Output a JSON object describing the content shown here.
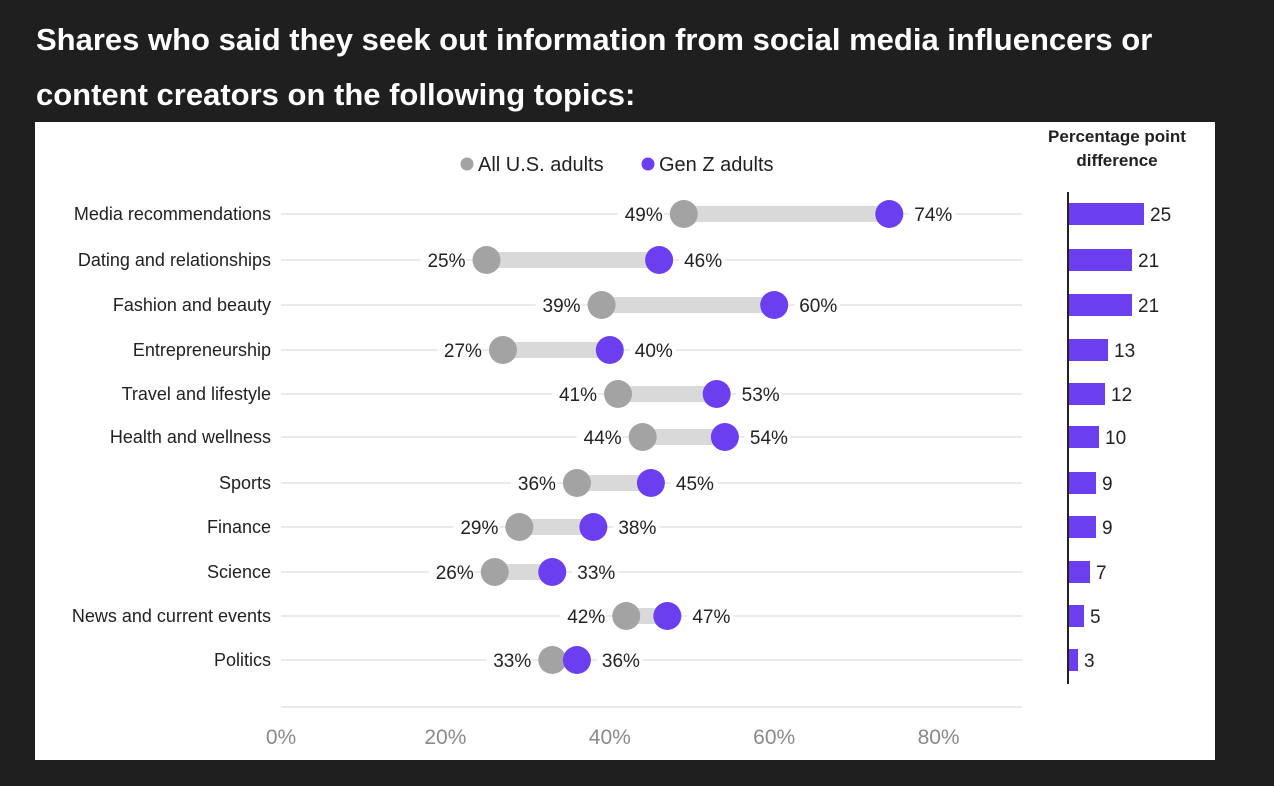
{
  "title": "Shares who said they seek out information from social media influencers or content creators on the following topics:",
  "colors": {
    "background": "#1f1f1f",
    "panel": "#ffffff",
    "all_adults": "#a3a3a3",
    "gen_z": "#6b3ff0",
    "connector": "#d9d9d9",
    "gridline": "#d6d6d6",
    "text": "#222222"
  },
  "chart_data": [
    {
      "type": "dot-plot",
      "xlim": [
        0,
        90
      ],
      "xticks": [
        0,
        20,
        40,
        60,
        80
      ],
      "xtick_labels": [
        "0%",
        "20%",
        "40%",
        "60%",
        "80%"
      ],
      "legend": {
        "position": "top",
        "entries": [
          "All U.S. adults",
          "Gen Z adults"
        ]
      },
      "categories": [
        "Media recommendations",
        "Dating and relationships",
        "Fashion and beauty",
        "Entrepreneurship",
        "Travel and lifestyle",
        "Health and wellness",
        "Sports",
        "Finance",
        "Science",
        "News and current events",
        "Politics"
      ],
      "series": [
        {
          "name": "All U.S. adults",
          "values": [
            49,
            25,
            39,
            27,
            41,
            44,
            36,
            29,
            26,
            42,
            33
          ]
        },
        {
          "name": "Gen Z adults",
          "values": [
            74,
            46,
            60,
            40,
            53,
            54,
            45,
            38,
            33,
            47,
            36
          ]
        }
      ],
      "value_labels": {
        "all": [
          "49%",
          "25%",
          "39%",
          "27%",
          "41%",
          "44%",
          "36%",
          "29%",
          "26%",
          "42%",
          "33%"
        ],
        "genz": [
          "74%",
          "46%",
          "60%",
          "40%",
          "53%",
          "54%",
          "45%",
          "38%",
          "33%",
          "47%",
          "36%"
        ]
      }
    },
    {
      "type": "bar",
      "orientation": "horizontal",
      "title": "Percentage point difference",
      "xlim": [
        0,
        30
      ],
      "values": [
        25,
        21,
        21,
        13,
        12,
        10,
        9,
        9,
        7,
        5,
        3
      ],
      "labels": [
        "25",
        "21",
        "21",
        "13",
        "12",
        "10",
        "9",
        "9",
        "7",
        "5",
        "3"
      ]
    }
  ]
}
